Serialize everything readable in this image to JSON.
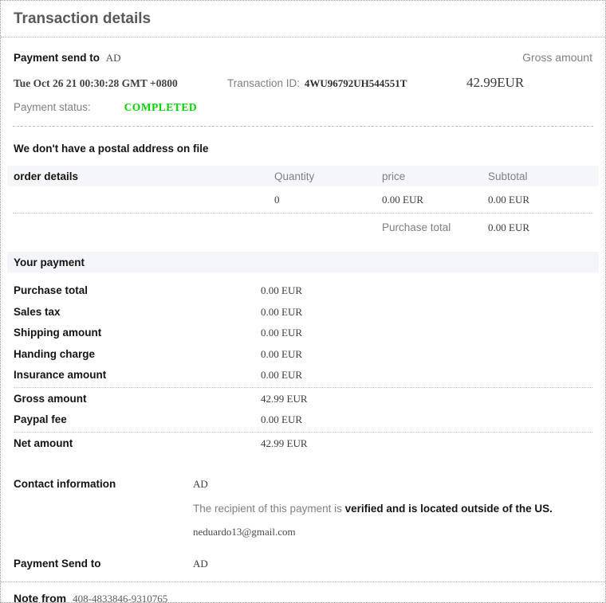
{
  "page": {
    "title": "Transaction details"
  },
  "summary": {
    "send_to_label": "Payment send to",
    "send_to_value": "AD",
    "gross_label": "Gross amount",
    "date": "Tue Oct 26 21 00:30:28 GMT +0800",
    "transaction_id_label": "Transaction ID:",
    "transaction_id": "4WU96792UH544551T",
    "gross_value": "42.99EUR",
    "status_label": "Payment status:",
    "status_value": "COMPLETED"
  },
  "postal_notice": "We don't have a postal address on file",
  "order": {
    "header": {
      "label": "order details",
      "quantity": "Quantity",
      "price": "price",
      "subtotal": "Subtotal"
    },
    "row": {
      "quantity": "0",
      "price": "0.00 EUR",
      "subtotal": "0.00 EUR"
    },
    "purchase_total_label": "Purchase total",
    "purchase_total_value": "0.00 EUR"
  },
  "your_payment": {
    "header": "Your payment",
    "rows": [
      {
        "label": "Purchase total",
        "value": "0.00 EUR"
      },
      {
        "label": "Sales tax",
        "value": "0.00 EUR"
      },
      {
        "label": "Shipping amount",
        "value": "0.00 EUR"
      },
      {
        "label": "Handing charge",
        "value": "0.00 EUR"
      },
      {
        "label": "Insurance amount",
        "value": "0.00 EUR"
      },
      {
        "label": "Gross amount",
        "value": "42.99 EUR"
      },
      {
        "label": "Paypal fee",
        "value": "0.00 EUR"
      },
      {
        "label": "Net amount",
        "value": "42.99 EUR"
      }
    ]
  },
  "contact": {
    "label": "Contact information",
    "name": "AD",
    "recipient_text": "The recipient of this payment is ",
    "recipient_bold": "verified and is located outside of the US.",
    "email": "neduardo13@gmail.com"
  },
  "payment_send_to": {
    "label": "Payment Send to",
    "value": "AD"
  },
  "note": {
    "label": "Note from",
    "value": "408-4833846-9310765"
  },
  "colors": {
    "status_completed_green": "#00d300",
    "section_header_bg": "#f5f6fa"
  }
}
